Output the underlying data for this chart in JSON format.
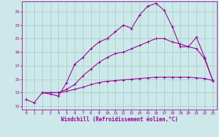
{
  "title": "",
  "xlabel": "Windchill (Refroidissement éolien,°C)",
  "background_color": "#cce8e8",
  "grid_color": "#aacccc",
  "line_color": "#990099",
  "x_ticks": [
    0,
    1,
    2,
    3,
    4,
    5,
    6,
    7,
    8,
    9,
    10,
    11,
    12,
    13,
    14,
    15,
    16,
    17,
    18,
    19,
    20,
    21,
    22,
    23
  ],
  "y_ticks": [
    11,
    13,
    15,
    17,
    19,
    21,
    23,
    25
  ],
  "ylim": [
    10.5,
    26.5
  ],
  "xlim": [
    -0.5,
    23.5
  ],
  "curve1_x": [
    0,
    1,
    2,
    3,
    4,
    5,
    6,
    7,
    8,
    9,
    10,
    11,
    12,
    13,
    14,
    15,
    16,
    17,
    18,
    19,
    20,
    21,
    22,
    23
  ],
  "curve1_y": [
    12.0,
    11.5,
    13.0,
    12.8,
    12.5,
    14.5,
    17.2,
    18.2,
    19.5,
    20.5,
    21.0,
    22.0,
    23.0,
    22.5,
    24.5,
    25.8,
    26.2,
    25.2,
    22.8,
    19.8,
    19.8,
    21.2,
    18.2,
    14.8
  ],
  "curve2_x": [
    2,
    3,
    4,
    5,
    6,
    7,
    8,
    9,
    10,
    11,
    12,
    13,
    14,
    15,
    16,
    17,
    18,
    19,
    20,
    21,
    22,
    23
  ],
  "curve2_y": [
    13.0,
    13.0,
    13.0,
    13.5,
    14.2,
    15.5,
    16.5,
    17.5,
    18.2,
    18.8,
    19.0,
    19.5,
    20.0,
    20.5,
    21.0,
    21.0,
    20.5,
    20.2,
    19.8,
    19.5,
    18.0,
    14.8
  ],
  "curve3_x": [
    2,
    3,
    4,
    5,
    6,
    7,
    8,
    9,
    10,
    11,
    12,
    13,
    14,
    15,
    16,
    17,
    18,
    19,
    20,
    21,
    22,
    23
  ],
  "curve3_y": [
    13.0,
    13.0,
    13.0,
    13.2,
    13.5,
    13.8,
    14.2,
    14.5,
    14.7,
    14.8,
    14.9,
    15.0,
    15.1,
    15.2,
    15.3,
    15.3,
    15.3,
    15.3,
    15.3,
    15.2,
    15.1,
    14.8
  ]
}
